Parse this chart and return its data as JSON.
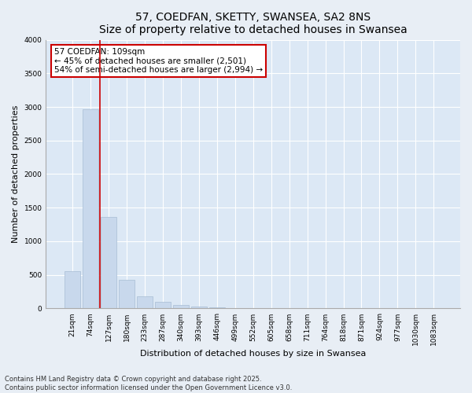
{
  "title1": "57, COEDFAN, SKETTY, SWANSEA, SA2 8NS",
  "title2": "Size of property relative to detached houses in Swansea",
  "xlabel": "Distribution of detached houses by size in Swansea",
  "ylabel": "Number of detached properties",
  "categories": [
    "21sqm",
    "74sqm",
    "127sqm",
    "180sqm",
    "233sqm",
    "287sqm",
    "340sqm",
    "393sqm",
    "446sqm",
    "499sqm",
    "552sqm",
    "605sqm",
    "658sqm",
    "711sqm",
    "764sqm",
    "818sqm",
    "871sqm",
    "924sqm",
    "977sqm",
    "1030sqm",
    "1083sqm"
  ],
  "values": [
    560,
    2970,
    1360,
    430,
    175,
    95,
    50,
    30,
    20,
    0,
    0,
    0,
    0,
    0,
    0,
    0,
    0,
    0,
    0,
    0,
    0
  ],
  "bar_color": "#c8d8ec",
  "bar_edge_color": "#a8bdd4",
  "vline_color": "#cc0000",
  "annotation_box_text": "57 COEDFAN: 109sqm\n← 45% of detached houses are smaller (2,501)\n54% of semi-detached houses are larger (2,994) →",
  "box_edge_color": "#cc0000",
  "ylim": [
    0,
    4000
  ],
  "yticks": [
    0,
    500,
    1000,
    1500,
    2000,
    2500,
    3000,
    3500,
    4000
  ],
  "footnote1": "Contains HM Land Registry data © Crown copyright and database right 2025.",
  "footnote2": "Contains public sector information licensed under the Open Government Licence v3.0.",
  "fig_bg_color": "#e8eef5",
  "plot_bg_color": "#dce8f5",
  "title_fontsize": 10,
  "label_fontsize": 8,
  "annot_fontsize": 7.5,
  "tick_fontsize": 6.5,
  "footnote_fontsize": 6
}
